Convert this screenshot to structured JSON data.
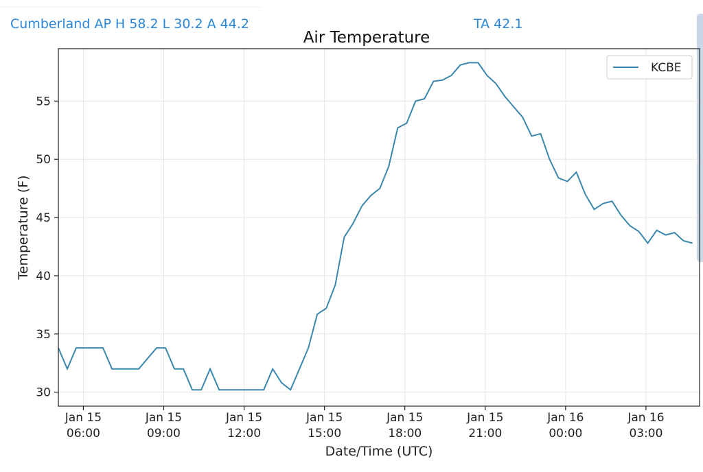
{
  "header": {
    "station_summary": "Cumberland AP H 58.2 L 30.2 A 44.2",
    "ta_readout": "TA 42.1"
  },
  "colors": {
    "header_text": "#2a86d6",
    "series_line": "#3a87ad"
  },
  "chart_data": {
    "type": "line",
    "title": "Air Temperature",
    "xlabel": "Date/Time (UTC)",
    "ylabel": "Temperature (F)",
    "xlim": [
      "2020-01-15T05:04",
      "2020-01-16T05:00"
    ],
    "ylim": [
      28.8,
      59.5
    ],
    "yticks": [
      30,
      35,
      40,
      45,
      50,
      55
    ],
    "xticks": [
      {
        "x": "2020-01-15T06:00",
        "line1": "Jan 15",
        "line2": "06:00"
      },
      {
        "x": "2020-01-15T09:00",
        "line1": "Jan 15",
        "line2": "09:00"
      },
      {
        "x": "2020-01-15T12:00",
        "line1": "Jan 15",
        "line2": "12:00"
      },
      {
        "x": "2020-01-15T15:00",
        "line1": "Jan 15",
        "line2": "15:00"
      },
      {
        "x": "2020-01-15T18:00",
        "line1": "Jan 15",
        "line2": "18:00"
      },
      {
        "x": "2020-01-15T21:00",
        "line1": "Jan 15",
        "line2": "21:00"
      },
      {
        "x": "2020-01-16T00:00",
        "line1": "Jan 16",
        "line2": "00:00"
      },
      {
        "x": "2020-01-16T03:00",
        "line1": "Jan 16",
        "line2": "03:00"
      }
    ],
    "grid": true,
    "legend_position": "top-right",
    "series": [
      {
        "name": "KCBE",
        "points": [
          [
            "2020-01-15T05:04",
            33.8
          ],
          [
            "2020-01-15T05:24",
            32.0
          ],
          [
            "2020-01-15T05:44",
            33.8
          ],
          [
            "2020-01-15T06:24",
            33.8
          ],
          [
            "2020-01-15T06:44",
            33.8
          ],
          [
            "2020-01-15T07:04",
            32.0
          ],
          [
            "2020-01-15T07:44",
            32.0
          ],
          [
            "2020-01-15T08:04",
            32.0
          ],
          [
            "2020-01-15T08:44",
            33.8
          ],
          [
            "2020-01-15T09:04",
            33.8
          ],
          [
            "2020-01-15T09:24",
            32.0
          ],
          [
            "2020-01-15T09:44",
            32.0
          ],
          [
            "2020-01-15T10:04",
            30.2
          ],
          [
            "2020-01-15T10:24",
            30.2
          ],
          [
            "2020-01-15T10:44",
            32.0
          ],
          [
            "2020-01-15T11:04",
            30.2
          ],
          [
            "2020-01-15T11:44",
            30.2
          ],
          [
            "2020-01-15T12:24",
            30.2
          ],
          [
            "2020-01-15T12:44",
            30.2
          ],
          [
            "2020-01-15T13:04",
            32.0
          ],
          [
            "2020-01-15T13:24",
            30.8
          ],
          [
            "2020-01-15T13:44",
            30.2
          ],
          [
            "2020-01-15T14:04",
            32.0
          ],
          [
            "2020-01-15T14:24",
            33.8
          ],
          [
            "2020-01-15T14:44",
            36.7
          ],
          [
            "2020-01-15T15:04",
            37.2
          ],
          [
            "2020-01-15T15:24",
            39.2
          ],
          [
            "2020-01-15T15:44",
            43.3
          ],
          [
            "2020-01-15T16:04",
            44.5
          ],
          [
            "2020-01-15T16:24",
            46.0
          ],
          [
            "2020-01-15T16:44",
            46.9
          ],
          [
            "2020-01-15T17:04",
            47.5
          ],
          [
            "2020-01-15T17:24",
            49.4
          ],
          [
            "2020-01-15T17:44",
            52.7
          ],
          [
            "2020-01-15T18:04",
            53.1
          ],
          [
            "2020-01-15T18:24",
            55.0
          ],
          [
            "2020-01-15T18:44",
            55.2
          ],
          [
            "2020-01-15T19:04",
            56.7
          ],
          [
            "2020-01-15T19:24",
            56.8
          ],
          [
            "2020-01-15T19:44",
            57.2
          ],
          [
            "2020-01-15T20:04",
            58.1
          ],
          [
            "2020-01-15T20:24",
            58.3
          ],
          [
            "2020-01-15T20:44",
            58.3
          ],
          [
            "2020-01-15T21:04",
            57.2
          ],
          [
            "2020-01-15T21:24",
            56.5
          ],
          [
            "2020-01-15T21:44",
            55.4
          ],
          [
            "2020-01-15T22:04",
            54.5
          ],
          [
            "2020-01-15T22:24",
            53.6
          ],
          [
            "2020-01-15T22:44",
            52.0
          ],
          [
            "2020-01-15T23:04",
            52.2
          ],
          [
            "2020-01-15T23:24",
            50.0
          ],
          [
            "2020-01-15T23:44",
            48.4
          ],
          [
            "2020-01-16T00:04",
            48.1
          ],
          [
            "2020-01-16T00:24",
            48.9
          ],
          [
            "2020-01-16T00:44",
            47.0
          ],
          [
            "2020-01-16T01:04",
            45.7
          ],
          [
            "2020-01-16T01:24",
            46.2
          ],
          [
            "2020-01-16T01:44",
            46.4
          ],
          [
            "2020-01-16T02:04",
            45.2
          ],
          [
            "2020-01-16T02:24",
            44.3
          ],
          [
            "2020-01-16T02:44",
            43.8
          ],
          [
            "2020-01-16T03:04",
            42.8
          ],
          [
            "2020-01-16T03:24",
            43.9
          ],
          [
            "2020-01-16T03:44",
            43.5
          ],
          [
            "2020-01-16T04:04",
            43.7
          ],
          [
            "2020-01-16T04:24",
            43.0
          ],
          [
            "2020-01-16T04:44",
            42.8
          ]
        ]
      }
    ]
  }
}
